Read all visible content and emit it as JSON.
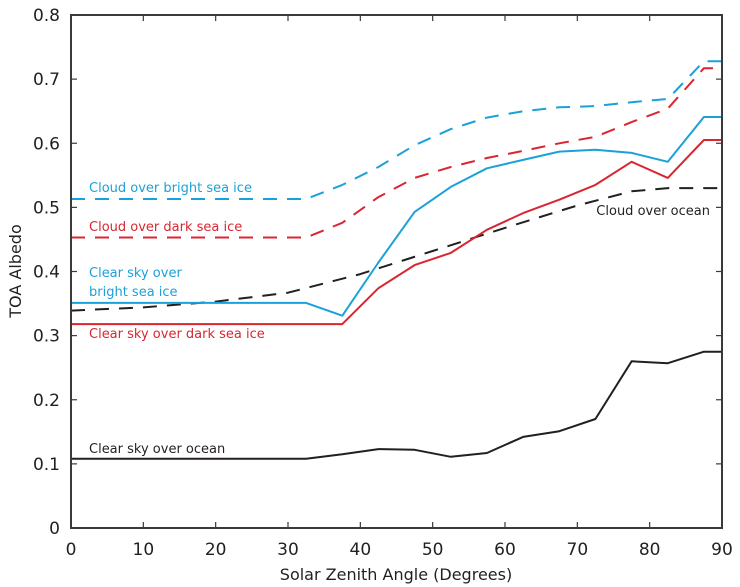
{
  "chart_data": {
    "type": "line",
    "title": "",
    "xlabel": "Solar Zenith Angle (Degrees)",
    "ylabel": "TOA Albedo",
    "xlim": [
      0,
      90
    ],
    "ylim": [
      0,
      0.8
    ],
    "xticks": [
      0,
      10,
      20,
      30,
      40,
      50,
      60,
      70,
      80,
      90
    ],
    "xtick_labels": [
      "0",
      "10",
      "20",
      "30",
      "40",
      "50",
      "60",
      "70",
      "80",
      "90"
    ],
    "yticks": [
      0,
      0.1,
      0.2,
      0.3,
      0.4,
      0.5,
      0.6,
      0.7,
      0.8
    ],
    "ytick_labels": [
      "0",
      "0.1",
      "0.2",
      "0.3",
      "0.4",
      "0.5",
      "0.6",
      "0.7",
      "0.8"
    ],
    "grid": false,
    "legend": "inline labels",
    "series": [
      {
        "name": "Cloud over bright sea ice",
        "label_lines": [
          "Cloud over bright sea ice"
        ],
        "color": "#1ba1d9",
        "style": "dashed",
        "x": [
          0,
          32.5,
          37.5,
          42.5,
          47.5,
          52.5,
          57.5,
          62.5,
          67.5,
          72.5,
          77.5,
          82.5,
          87.5,
          90
        ],
        "y": [
          0.513,
          0.513,
          0.535,
          0.563,
          0.597,
          0.622,
          0.64,
          0.65,
          0.656,
          0.658,
          0.664,
          0.669,
          0.728,
          0.728
        ]
      },
      {
        "name": "Cloud over dark sea ice",
        "label_lines": [
          "Cloud over dark sea ice"
        ],
        "color": "#d92630",
        "style": "dashed",
        "x": [
          0,
          32.5,
          37.5,
          42.5,
          47.5,
          52.5,
          57.5,
          62.5,
          67.5,
          72.5,
          77.5,
          82.5,
          87.5,
          90
        ],
        "y": [
          0.453,
          0.453,
          0.476,
          0.516,
          0.546,
          0.563,
          0.577,
          0.588,
          0.6,
          0.61,
          0.633,
          0.654,
          0.717,
          0.717
        ]
      },
      {
        "name": "Cloud over ocean",
        "label_lines": [
          "Cloud over ocean"
        ],
        "color": "#231f20",
        "style": "dashed",
        "x": [
          0,
          10,
          20,
          30,
          40,
          50,
          60,
          70,
          77.5,
          82.5,
          87.5,
          90
        ],
        "y": [
          0.339,
          0.344,
          0.353,
          0.367,
          0.396,
          0.432,
          0.468,
          0.503,
          0.525,
          0.53,
          0.53,
          0.53
        ]
      },
      {
        "name": "Clear sky over bright sea ice",
        "label_lines": [
          "Clear sky over",
          "bright sea ice"
        ],
        "color": "#1ba1d9",
        "style": "solid",
        "x": [
          0,
          32.5,
          37.5,
          42.5,
          47.5,
          52.5,
          57.5,
          62.5,
          67.5,
          72.5,
          77.5,
          82.5,
          87.5,
          90
        ],
        "y": [
          0.351,
          0.351,
          0.331,
          0.414,
          0.493,
          0.532,
          0.561,
          0.574,
          0.587,
          0.59,
          0.585,
          0.571,
          0.641,
          0.641
        ]
      },
      {
        "name": "Clear sky over dark sea ice",
        "label_lines": [
          "Clear sky over dark sea ice"
        ],
        "color": "#d92630",
        "style": "solid",
        "x": [
          0,
          32.5,
          37.5,
          42.5,
          47.5,
          52.5,
          57.5,
          62.5,
          67.5,
          72.5,
          77.5,
          82.5,
          87.5,
          90
        ],
        "y": [
          0.318,
          0.318,
          0.318,
          0.374,
          0.41,
          0.429,
          0.465,
          0.491,
          0.512,
          0.535,
          0.571,
          0.546,
          0.605,
          0.605
        ]
      },
      {
        "name": "Clear sky over ocean",
        "label_lines": [
          "Clear sky over ocean"
        ],
        "color": "#231f20",
        "style": "solid",
        "x": [
          0,
          32.5,
          37.5,
          42.5,
          47.5,
          52.5,
          57.5,
          62.5,
          67.5,
          72.5,
          77.5,
          82.5,
          87.5,
          90
        ],
        "y": [
          0.108,
          0.108,
          0.115,
          0.123,
          0.122,
          0.111,
          0.117,
          0.142,
          0.151,
          0.17,
          0.26,
          0.257,
          0.275,
          0.275
        ]
      }
    ]
  }
}
